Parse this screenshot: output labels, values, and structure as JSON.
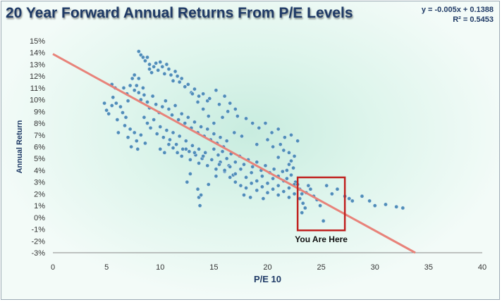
{
  "chart_data": {
    "type": "scatter",
    "title": "20 Year Forward Annual Returns From P/E Levels",
    "equation": "y = -0.005x + 0.1388",
    "r_squared": "R² = 0.5453",
    "xlabel": "P/E 10",
    "ylabel": "Annual Return",
    "xlim": [
      0,
      40
    ],
    "ylim": [
      -0.03,
      0.15
    ],
    "x_ticks": [
      "0",
      "5",
      "10",
      "15",
      "20",
      "25",
      "30",
      "35",
      "40"
    ],
    "y_ticks": [
      "-3%",
      "-2%",
      "-1%",
      "0%",
      "1%",
      "2%",
      "3%",
      "4%",
      "5%",
      "6%",
      "7%",
      "8%",
      "9%",
      "10%",
      "11%",
      "12%",
      "13%",
      "14%",
      "15%"
    ],
    "grid": false,
    "trendline": {
      "slope": -0.005,
      "intercept": 0.1388,
      "color": "#e8837a"
    },
    "marker_color": "#4f8db8",
    "annotation": {
      "text": "You Are Here",
      "x_range": [
        22.8,
        27.2
      ],
      "y_range": [
        -0.011,
        0.034
      ],
      "color": "#c0211f"
    },
    "series": [
      {
        "values": [
          [
            4.8,
            0.097
          ],
          [
            5.0,
            0.091
          ],
          [
            5.2,
            0.088
          ],
          [
            5.5,
            0.095
          ],
          [
            5.6,
            0.102
          ],
          [
            5.9,
            0.097
          ],
          [
            6.0,
            0.083
          ],
          [
            6.1,
            0.072
          ],
          [
            6.3,
            0.094
          ],
          [
            6.5,
            0.089
          ],
          [
            6.7,
            0.078
          ],
          [
            6.8,
            0.085
          ],
          [
            7.0,
            0.068
          ],
          [
            7.2,
            0.075
          ],
          [
            7.3,
            0.06
          ],
          [
            7.6,
            0.072
          ],
          [
            7.8,
            0.065
          ],
          [
            7.9,
            0.058
          ],
          [
            8.2,
            0.07
          ],
          [
            8.6,
            0.063
          ],
          [
            5.5,
            0.113
          ],
          [
            5.8,
            0.11
          ],
          [
            6.6,
            0.11
          ],
          [
            6.9,
            0.105
          ],
          [
            7.0,
            0.099
          ],
          [
            7.2,
            0.112
          ],
          [
            7.4,
            0.118
          ],
          [
            7.6,
            0.121
          ],
          [
            7.6,
            0.108
          ],
          [
            7.8,
            0.112
          ],
          [
            8.0,
            0.106
          ],
          [
            8.2,
            0.1
          ],
          [
            8.4,
            0.11
          ],
          [
            8.0,
            0.141
          ],
          [
            8.2,
            0.138
          ],
          [
            8.4,
            0.136
          ],
          [
            8.6,
            0.133
          ],
          [
            8.8,
            0.136
          ],
          [
            9.0,
            0.13
          ],
          [
            9.0,
            0.126
          ],
          [
            9.2,
            0.123
          ],
          [
            9.4,
            0.128
          ],
          [
            9.6,
            0.131
          ],
          [
            9.8,
            0.125
          ],
          [
            10.0,
            0.132
          ],
          [
            10.2,
            0.128
          ],
          [
            10.4,
            0.122
          ],
          [
            10.6,
            0.13
          ],
          [
            10.8,
            0.126
          ],
          [
            11.0,
            0.121
          ],
          [
            11.2,
            0.116
          ],
          [
            11.4,
            0.124
          ],
          [
            11.6,
            0.12
          ],
          [
            11.8,
            0.115
          ],
          [
            12.0,
            0.118
          ],
          [
            12.3,
            0.111
          ],
          [
            12.6,
            0.113
          ],
          [
            12.9,
            0.106
          ],
          [
            13.2,
            0.109
          ],
          [
            13.6,
            0.103
          ],
          [
            14.0,
            0.105
          ],
          [
            14.4,
            0.099
          ],
          [
            8.0,
            0.118
          ],
          [
            8.5,
            0.104
          ],
          [
            8.8,
            0.098
          ],
          [
            9.0,
            0.093
          ],
          [
            9.3,
            0.103
          ],
          [
            9.6,
            0.096
          ],
          [
            9.9,
            0.089
          ],
          [
            10.2,
            0.094
          ],
          [
            10.5,
            0.099
          ],
          [
            10.8,
            0.092
          ],
          [
            11.1,
            0.087
          ],
          [
            11.4,
            0.095
          ],
          [
            11.7,
            0.083
          ],
          [
            12.0,
            0.088
          ],
          [
            12.3,
            0.08
          ],
          [
            12.6,
            0.085
          ],
          [
            12.9,
            0.076
          ],
          [
            13.2,
            0.081
          ],
          [
            13.5,
            0.072
          ],
          [
            13.8,
            0.077
          ],
          [
            14.1,
            0.069
          ],
          [
            14.4,
            0.075
          ],
          [
            14.7,
            0.066
          ],
          [
            15.0,
            0.071
          ],
          [
            15.3,
            0.063
          ],
          [
            15.6,
            0.068
          ],
          [
            15.9,
            0.06
          ],
          [
            16.2,
            0.065
          ],
          [
            8.5,
            0.085
          ],
          [
            8.8,
            0.08
          ],
          [
            9.1,
            0.076
          ],
          [
            9.4,
            0.083
          ],
          [
            9.7,
            0.071
          ],
          [
            10.0,
            0.077
          ],
          [
            10.3,
            0.068
          ],
          [
            10.6,
            0.074
          ],
          [
            10.9,
            0.066
          ],
          [
            11.2,
            0.072
          ],
          [
            11.5,
            0.062
          ],
          [
            11.8,
            0.069
          ],
          [
            12.1,
            0.058
          ],
          [
            12.4,
            0.065
          ],
          [
            12.7,
            0.056
          ],
          [
            13.0,
            0.061
          ],
          [
            13.3,
            0.053
          ],
          [
            13.6,
            0.058
          ],
          [
            13.9,
            0.05
          ],
          [
            14.2,
            0.055
          ],
          [
            10.0,
            0.058
          ],
          [
            10.4,
            0.055
          ],
          [
            10.8,
            0.062
          ],
          [
            11.2,
            0.059
          ],
          [
            11.6,
            0.055
          ],
          [
            12.0,
            0.052
          ],
          [
            12.4,
            0.058
          ],
          [
            12.8,
            0.049
          ],
          [
            13.2,
            0.055
          ],
          [
            13.6,
            0.046
          ],
          [
            14.0,
            0.052
          ],
          [
            14.4,
            0.044
          ],
          [
            14.8,
            0.049
          ],
          [
            15.2,
            0.041
          ],
          [
            15.6,
            0.047
          ],
          [
            16.0,
            0.039
          ],
          [
            16.4,
            0.044
          ],
          [
            16.8,
            0.036
          ],
          [
            13.0,
            0.105
          ],
          [
            13.5,
            0.098
          ],
          [
            14.0,
            0.092
          ],
          [
            14.5,
            0.086
          ],
          [
            15.0,
            0.08
          ],
          [
            15.5,
            0.096
          ],
          [
            16.0,
            0.103
          ],
          [
            16.5,
            0.097
          ],
          [
            17.0,
            0.092
          ],
          [
            17.2,
            0.086
          ],
          [
            16.3,
            0.09
          ],
          [
            15.8,
            0.085
          ],
          [
            14.6,
            0.101
          ],
          [
            15.2,
            0.108
          ],
          [
            15.0,
            0.058
          ],
          [
            15.4,
            0.053
          ],
          [
            15.8,
            0.056
          ],
          [
            16.2,
            0.05
          ],
          [
            16.6,
            0.054
          ],
          [
            17.0,
            0.047
          ],
          [
            17.4,
            0.052
          ],
          [
            17.8,
            0.045
          ],
          [
            18.2,
            0.049
          ],
          [
            18.6,
            0.043
          ],
          [
            19.0,
            0.047
          ],
          [
            19.4,
            0.04
          ],
          [
            19.8,
            0.044
          ],
          [
            20.2,
            0.038
          ],
          [
            20.6,
            0.041
          ],
          [
            21.0,
            0.035
          ],
          [
            21.4,
            0.039
          ],
          [
            21.8,
            0.033
          ],
          [
            22.2,
            0.036
          ],
          [
            22.6,
            0.03
          ],
          [
            15.5,
            0.045
          ],
          [
            16.0,
            0.04
          ],
          [
            16.5,
            0.043
          ],
          [
            17.0,
            0.037
          ],
          [
            17.5,
            0.041
          ],
          [
            18.0,
            0.034
          ],
          [
            18.5,
            0.038
          ],
          [
            19.0,
            0.031
          ],
          [
            19.5,
            0.035
          ],
          [
            20.0,
            0.029
          ],
          [
            20.5,
            0.033
          ],
          [
            21.0,
            0.027
          ],
          [
            21.5,
            0.031
          ],
          [
            22.0,
            0.025
          ],
          [
            22.5,
            0.028
          ],
          [
            16.5,
            0.034
          ],
          [
            17.0,
            0.03
          ],
          [
            17.5,
            0.027
          ],
          [
            18.0,
            0.025
          ],
          [
            18.5,
            0.029
          ],
          [
            19.0,
            0.023
          ],
          [
            19.5,
            0.026
          ],
          [
            20.0,
            0.021
          ],
          [
            20.5,
            0.024
          ],
          [
            21.0,
            0.019
          ],
          [
            21.5,
            0.022
          ],
          [
            22.0,
            0.017
          ],
          [
            22.5,
            0.02
          ],
          [
            17.8,
            0.019
          ],
          [
            18.4,
            0.017
          ],
          [
            19.6,
            0.016
          ],
          [
            18.0,
            0.084
          ],
          [
            18.6,
            0.08
          ],
          [
            19.2,
            0.076
          ],
          [
            19.8,
            0.08
          ],
          [
            20.4,
            0.072
          ],
          [
            21.0,
            0.075
          ],
          [
            21.6,
            0.068
          ],
          [
            22.2,
            0.07
          ],
          [
            22.8,
            0.065
          ],
          [
            20.0,
            0.066
          ],
          [
            21.2,
            0.062
          ],
          [
            19.0,
            0.062
          ],
          [
            17.6,
            0.069
          ],
          [
            16.9,
            0.072
          ],
          [
            12.5,
            0.03
          ],
          [
            12.8,
            0.037
          ],
          [
            13.5,
            0.024
          ],
          [
            13.6,
            0.017
          ],
          [
            13.7,
            0.01
          ],
          [
            13.8,
            0.019
          ],
          [
            14.5,
            0.028
          ],
          [
            15.2,
            0.035
          ],
          [
            20.5,
            0.06
          ],
          [
            21.5,
            0.057
          ],
          [
            22.0,
            0.055
          ],
          [
            22.5,
            0.052
          ],
          [
            21.0,
            0.051
          ],
          [
            22.0,
            0.045
          ],
          [
            22.2,
            0.048
          ],
          [
            22.4,
            0.042
          ],
          [
            21.8,
            0.04
          ],
          [
            22.8,
            0.028
          ],
          [
            23.0,
            0.024
          ],
          [
            23.2,
            0.02
          ],
          [
            23.0,
            0.016
          ],
          [
            23.3,
            0.012
          ],
          [
            23.5,
            0.008
          ],
          [
            23.6,
            0.021
          ],
          [
            23.8,
            0.027
          ],
          [
            23.2,
            0.004
          ],
          [
            24.0,
            0.024
          ],
          [
            24.3,
            0.018
          ],
          [
            24.6,
            0.015
          ],
          [
            24.9,
            0.01
          ],
          [
            25.2,
            -0.003
          ],
          [
            25.5,
            0.027
          ],
          [
            26.0,
            0.02
          ],
          [
            26.5,
            0.024
          ],
          [
            27.2,
            0.018
          ],
          [
            27.6,
            0.016
          ],
          [
            27.9,
            0.014
          ],
          [
            28.8,
            0.018
          ],
          [
            29.5,
            0.014
          ],
          [
            30.0,
            0.01
          ],
          [
            31.0,
            0.011
          ],
          [
            32.0,
            0.009
          ],
          [
            32.6,
            0.008
          ]
        ]
      }
    ]
  }
}
